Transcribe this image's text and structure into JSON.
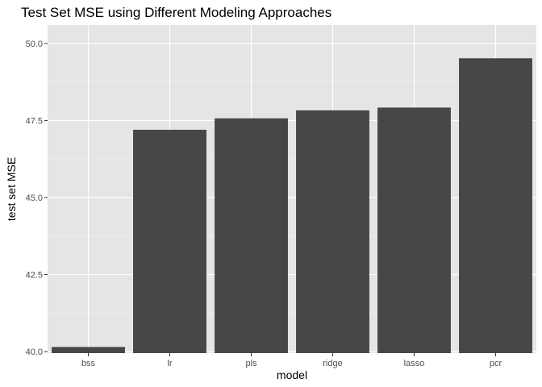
{
  "chart_data": {
    "type": "bar",
    "title": "Test Set MSE using Different Modeling Approaches",
    "xlabel": "model",
    "ylabel": "test set MSE",
    "categories": [
      "bss",
      "lr",
      "pls",
      "ridge",
      "lasso",
      "pcr"
    ],
    "values": [
      40.15,
      47.2,
      47.57,
      47.83,
      47.92,
      49.52
    ],
    "ylim": [
      39.95,
      50.6
    ],
    "baseline": 39.95,
    "yticks": [
      40.0,
      42.5,
      45.0,
      47.5,
      50.0
    ],
    "ytick_labels": [
      "40.0",
      "42.5",
      "45.0",
      "47.5",
      "50.0"
    ],
    "grid": true,
    "legend": "none",
    "colors": {
      "bar": "#474747",
      "panel": "#e5e5e5",
      "grid_major": "#ffffff",
      "tick_text": "#4d4d4d",
      "tick_mark": "#333333"
    }
  }
}
